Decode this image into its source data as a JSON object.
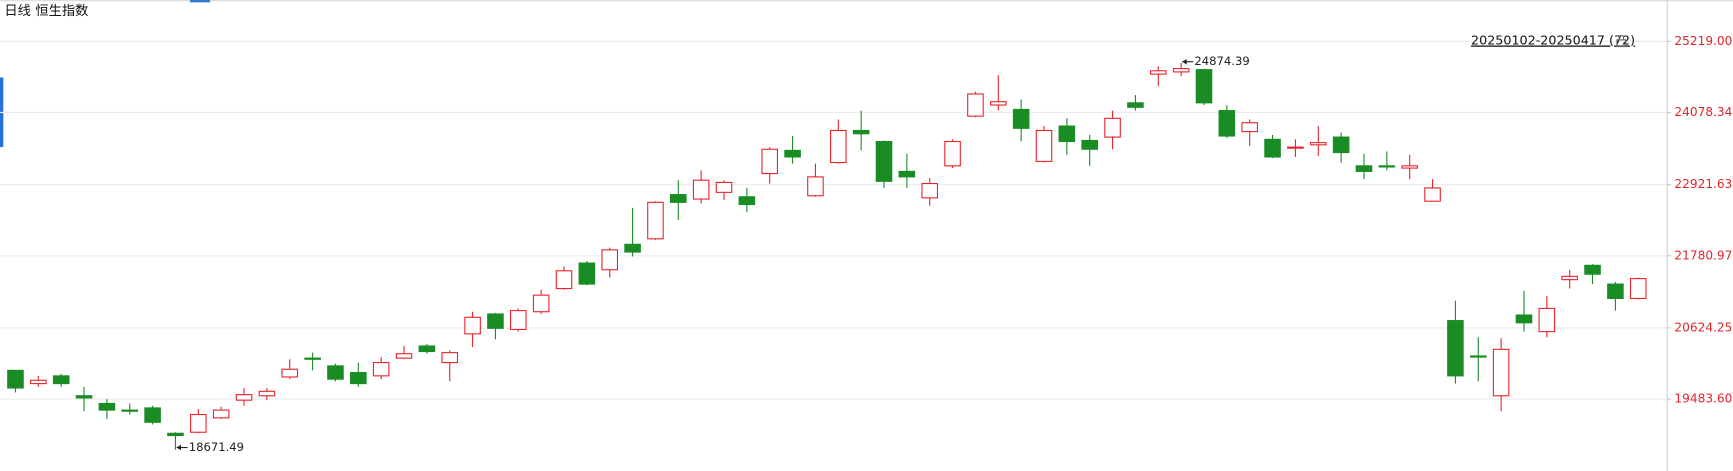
{
  "chart_data": {
    "type": "candlestick",
    "timeframe": "日线",
    "title": "恒生指数",
    "range_label": "20250102-20250417 (72)",
    "up_color": "#e8242a",
    "down_color": "#1a8c24",
    "grid": true,
    "ylim": [
      18332,
      25526
    ],
    "yticks": [
      {
        "value": 25219,
        "label": "25219.00"
      },
      24078.34,
      22921.63,
      21780.97,
      20624.25,
      {
        "value": 19483.6,
        "label": "19483.60"
      }
    ],
    "open": [
      19944,
      19732,
      19856,
      19537,
      19413,
      19307,
      19342,
      18935,
      18952,
      19183,
      19466,
      19537,
      19838,
      20140,
      20016,
      19909,
      19856,
      20140,
      20335,
      20069,
      20529,
      20848,
      20600,
      20884,
      21256,
      21664,
      21557,
      21965,
      22053,
      22762,
      22691,
      22798,
      22727,
      23099,
      23471,
      22744,
      23276,
      23790,
      23613,
      23134,
      22709,
      23223,
      24020,
      24198,
      24127,
      23294,
      23861,
      23630,
      23684,
      24233,
      24694,
      24729,
      24765,
      24109,
      23772,
      23648,
      23506,
      23560,
      23684,
      23223,
      23223,
      23187,
      22656,
      20742,
      20175,
      19537,
      20831,
      20565,
      21398,
      21628,
      21327,
      21097
    ],
    "high": [
      19944,
      19856,
      19892,
      19679,
      19484,
      19413,
      19378,
      18952,
      19324,
      19360,
      19661,
      19661,
      20122,
      20228,
      20051,
      20069,
      20157,
      20335,
      20370,
      20264,
      20884,
      20866,
      20937,
      21238,
      21610,
      21699,
      21912,
      22550,
      22656,
      22993,
      23152,
      22993,
      22869,
      23524,
      23701,
      23258,
      23967,
      24109,
      23631,
      23418,
      23028,
      23648,
      24410,
      24676,
      24286,
      23861,
      23985,
      23719,
      24109,
      24357,
      24818,
      24874.39,
      24782,
      24198,
      23967,
      23719,
      23648,
      23861,
      23755,
      23418,
      23453,
      23400,
      23010,
      21061,
      20476,
      20459,
      21221,
      21132,
      21557,
      21646,
      21362,
      21433
    ],
    "low": [
      19590,
      19679,
      19679,
      19289,
      19165,
      19236,
      19076,
      18671.49,
      18935,
      19165,
      19378,
      19466,
      19803,
      19944,
      19768,
      19679,
      19803,
      20122,
      20211,
      19768,
      20317,
      20441,
      20565,
      20848,
      21238,
      21309,
      21433,
      21770,
      22035,
      22355,
      22620,
      22673,
      22479,
      22939,
      23258,
      22727,
      23258,
      23471,
      22869,
      22869,
      22585,
      23187,
      24002,
      24109,
      23613,
      23276,
      23400,
      23223,
      23489,
      24109,
      24499,
      24658,
      24198,
      23666,
      23542,
      23347,
      23365,
      23382,
      23276,
      23010,
      23152,
      23010,
      22656,
      19732,
      19768,
      19289,
      20565,
      20476,
      21256,
      21327,
      20902,
      21079
    ],
    "close": [
      19661,
      19785,
      19732,
      19502,
      19307,
      19289,
      19112,
      18899,
      19236,
      19307,
      19555,
      19608,
      19962,
      20122,
      19803,
      19732,
      20069,
      20211,
      20246,
      20228,
      20795,
      20618,
      20902,
      21150,
      21540,
      21327,
      21876,
      21841,
      22638,
      22638,
      22993,
      22957,
      22603,
      23489,
      23365,
      23046,
      23790,
      23737,
      22975,
      23046,
      22939,
      23613,
      24375,
      24251,
      23825,
      23790,
      23613,
      23489,
      23985,
      24162,
      24747,
      24782,
      24233,
      23701,
      23914,
      23365,
      23524,
      23595,
      23436,
      23134,
      23205,
      23223,
      22869,
      19856,
      20157,
      20281,
      20707,
      20937,
      21451,
      21486,
      21097,
      21415
    ]
  }
}
